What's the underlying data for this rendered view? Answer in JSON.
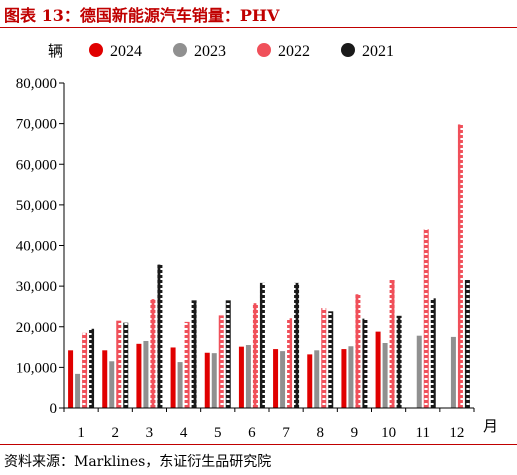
{
  "header": {
    "title": "图表 13：德国新能源汽车销量：PHV"
  },
  "footer": {
    "source": "资料来源：Marklines，东证衍生品研究院"
  },
  "chart_data": {
    "type": "bar",
    "title": "图表 13：德国新能源汽车销量：PHV",
    "ylabel": "辆",
    "xlabel": "月",
    "categories": [
      "1",
      "2",
      "3",
      "4",
      "5",
      "6",
      "7",
      "8",
      "9",
      "10",
      "11",
      "12"
    ],
    "ylim": [
      0,
      80000
    ],
    "yticks": [
      0,
      10000,
      20000,
      30000,
      40000,
      50000,
      60000,
      70000,
      80000
    ],
    "ytick_labels": [
      "0",
      "10,000",
      "20,000",
      "30,000",
      "40,000",
      "50,000",
      "60,000",
      "70,000",
      "80,000"
    ],
    "legend": "top",
    "grid": false,
    "series": [
      {
        "name": "2024",
        "color": "#e00000",
        "pattern": "solid",
        "values": [
          14200,
          14200,
          15800,
          14900,
          13600,
          15100,
          14500,
          13200,
          14500,
          18800,
          null,
          null
        ]
      },
      {
        "name": "2023",
        "color": "#909090",
        "pattern": "solid",
        "values": [
          8400,
          11500,
          16500,
          11300,
          13500,
          15500,
          14000,
          14200,
          15200,
          16000,
          17800,
          17500
        ]
      },
      {
        "name": "2022",
        "color": "#f0505a",
        "pattern": "dotted",
        "values": [
          18500,
          21500,
          26800,
          21200,
          22800,
          25800,
          22100,
          24600,
          28000,
          31500,
          44000,
          69800
        ]
      },
      {
        "name": "2021",
        "color": "#1a1a1a",
        "pattern": "dotted",
        "values": [
          19500,
          21000,
          35300,
          26500,
          26500,
          30800,
          30800,
          23800,
          22000,
          22700,
          27000,
          31500
        ]
      }
    ]
  }
}
